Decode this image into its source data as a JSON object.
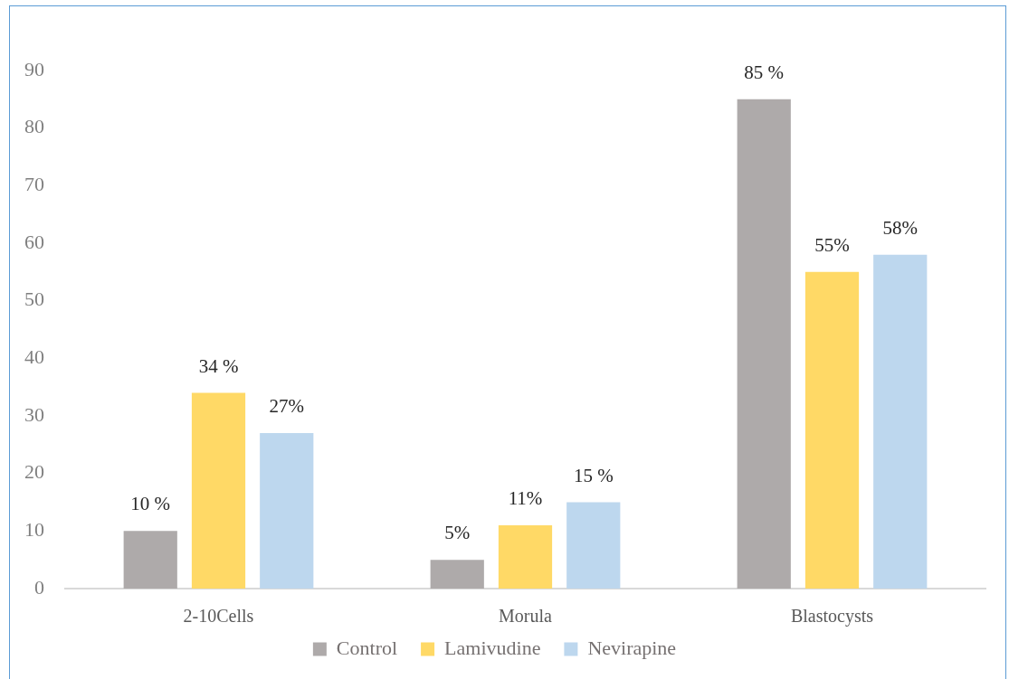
{
  "chart_data": {
    "type": "bar",
    "categories": [
      "2-10Cells",
      "Morula",
      "Blastocysts"
    ],
    "series": [
      {
        "name": "Control",
        "color": "#aeaaaa",
        "values": [
          10,
          5,
          85
        ],
        "value_labels": [
          "10 %",
          "5%",
          "85 %"
        ]
      },
      {
        "name": "Lamivudine",
        "color": "#ffd966",
        "values": [
          34,
          11,
          55
        ],
        "value_labels": [
          "34 %",
          "11%",
          "55%"
        ]
      },
      {
        "name": "Nevirapine",
        "color": "#bdd7ee",
        "values": [
          27,
          15,
          58
        ],
        "value_labels": [
          "27%",
          "15 %",
          "58%"
        ]
      }
    ],
    "ylim": [
      0,
      90
    ],
    "yticks": [
      0,
      10,
      20,
      30,
      40,
      50,
      60,
      70,
      80,
      90
    ],
    "grid": false,
    "legend": "bottom"
  }
}
